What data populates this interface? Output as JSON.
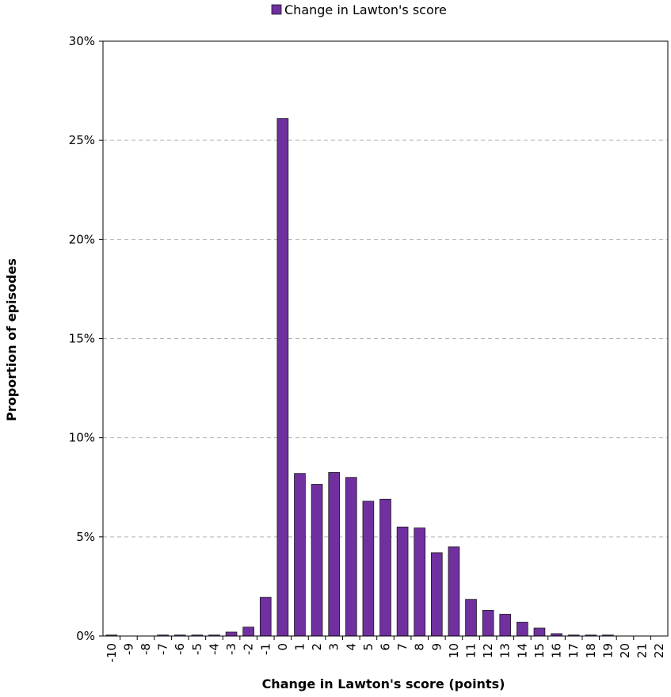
{
  "colors": {
    "bar_fill": "#7030a0",
    "bar_stroke": "#1a1a1a",
    "gridline": "#b3b3b3",
    "axis": "#000000"
  },
  "chart_data": {
    "type": "bar",
    "title": "",
    "xlabel": "Change in Lawton's score (points)",
    "ylabel": "Proportion of episodes",
    "ylim": [
      0,
      30
    ],
    "y_unit": "%",
    "y_ticks": [
      "0%",
      "5%",
      "10%",
      "15%",
      "20%",
      "25%",
      "30%"
    ],
    "grid": "horizontal dashed",
    "legend_position": "top-center",
    "categories": [
      "-10",
      "-9",
      "-8",
      "-7",
      "-6",
      "-5",
      "-4",
      "-3",
      "-2",
      "-1",
      "0",
      "1",
      "2",
      "3",
      "4",
      "5",
      "6",
      "7",
      "8",
      "9",
      "10",
      "11",
      "12",
      "13",
      "14",
      "15",
      "16",
      "17",
      "18",
      "19",
      "20",
      "21",
      "22"
    ],
    "series": [
      {
        "name": "Change in Lawton's score",
        "values": [
          0.05,
          0,
          0,
          0.05,
          0.05,
          0.05,
          0.05,
          0.2,
          0.45,
          1.95,
          26.1,
          8.2,
          7.65,
          8.25,
          8.0,
          6.8,
          6.9,
          5.5,
          5.45,
          4.2,
          4.5,
          1.85,
          1.3,
          1.1,
          0.7,
          0.4,
          0.12,
          0.05,
          0.05,
          0.05,
          0,
          0,
          0
        ]
      }
    ]
  }
}
